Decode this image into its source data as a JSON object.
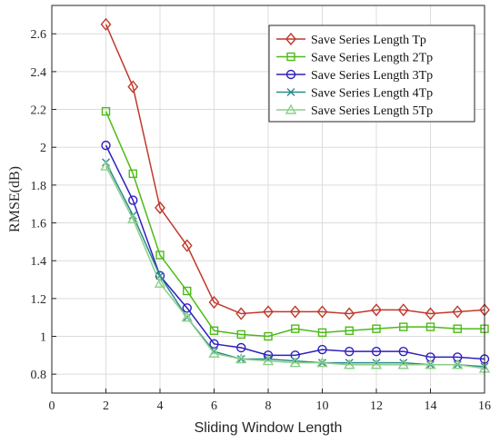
{
  "chart_data": {
    "type": "line",
    "title": "",
    "xlabel": "Sliding Window Length",
    "ylabel": "RMSE(dB)",
    "xlim": [
      0,
      16
    ],
    "ylim": [
      0.7,
      2.75
    ],
    "xticks": [
      0,
      2,
      4,
      6,
      8,
      10,
      12,
      14,
      16
    ],
    "yticks": [
      0.8,
      1,
      1.2,
      1.4,
      1.6,
      1.8,
      2,
      2.2,
      2.4,
      2.6
    ],
    "grid": true,
    "legend_position": "top-right",
    "x": [
      2,
      3,
      4,
      5,
      6,
      7,
      8,
      9,
      10,
      11,
      12,
      13,
      14,
      15,
      16
    ],
    "series": [
      {
        "name": "Save Series Length Tp",
        "color": "#c0392b",
        "marker": "diamond",
        "values": [
          2.65,
          2.32,
          1.68,
          1.48,
          1.18,
          1.12,
          1.13,
          1.13,
          1.13,
          1.12,
          1.14,
          1.14,
          1.12,
          1.13,
          1.14
        ]
      },
      {
        "name": "Save Series Length 2Tp",
        "color": "#4cbb17",
        "marker": "square",
        "values": [
          2.19,
          1.86,
          1.43,
          1.24,
          1.03,
          1.01,
          1.0,
          1.04,
          1.02,
          1.03,
          1.04,
          1.05,
          1.05,
          1.04,
          1.04
        ]
      },
      {
        "name": "Save Series Length 3Tp",
        "color": "#2e1fbf",
        "marker": "circle",
        "values": [
          2.01,
          1.72,
          1.32,
          1.15,
          0.96,
          0.94,
          0.9,
          0.9,
          0.93,
          0.92,
          0.92,
          0.92,
          0.89,
          0.89,
          0.88
        ]
      },
      {
        "name": "Save Series Length 4Tp",
        "color": "#2a8a8a",
        "marker": "x",
        "values": [
          1.92,
          1.64,
          1.32,
          1.1,
          0.92,
          0.88,
          0.88,
          0.87,
          0.86,
          0.86,
          0.86,
          0.86,
          0.85,
          0.85,
          0.84
        ]
      },
      {
        "name": "Save Series Length 5Tp",
        "color": "#8ccf8c",
        "marker": "triangle",
        "values": [
          1.9,
          1.62,
          1.28,
          1.1,
          0.91,
          0.88,
          0.87,
          0.86,
          0.86,
          0.85,
          0.85,
          0.85,
          0.85,
          0.85,
          0.83
        ]
      }
    ]
  }
}
